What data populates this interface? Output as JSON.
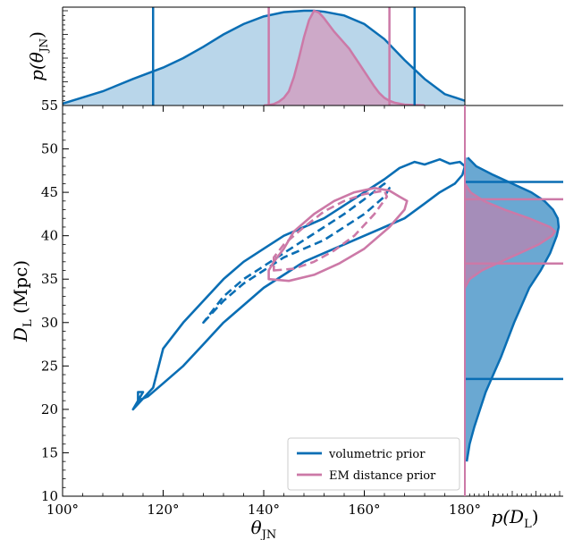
{
  "colors": {
    "volumetric": "#0a6eb4",
    "em": "#cc79a7",
    "volumetric_fill": "#b9d6ea",
    "em_fill": "#cea6c6"
  },
  "chart_data": [
    {
      "type": "area",
      "panel": "top-marginal",
      "ylabel": "p(θJN)",
      "xlim": [
        100,
        180
      ],
      "series": [
        {
          "name": "volumetric prior",
          "x": [
            100,
            108,
            114,
            120,
            124,
            128,
            132,
            136,
            140,
            144,
            148,
            150,
            152,
            156,
            160,
            164,
            168,
            172,
            176,
            180
          ],
          "y": [
            0.02,
            0.15,
            0.28,
            0.4,
            0.5,
            0.62,
            0.75,
            0.86,
            0.94,
            0.985,
            1.0,
            1.0,
            0.99,
            0.95,
            0.86,
            0.7,
            0.48,
            0.28,
            0.12,
            0.05
          ]
        },
        {
          "name": "EM distance prior",
          "x": [
            140,
            141,
            142,
            143,
            144,
            145,
            146,
            147,
            148,
            149,
            150,
            151,
            152,
            153,
            154,
            155,
            156,
            157,
            158,
            159,
            160,
            161,
            162,
            163,
            164,
            165,
            166,
            168,
            170,
            172
          ],
          "y": [
            0,
            0.005,
            0.015,
            0.04,
            0.08,
            0.15,
            0.3,
            0.5,
            0.72,
            0.9,
            1.0,
            0.98,
            0.92,
            0.85,
            0.78,
            0.72,
            0.66,
            0.6,
            0.52,
            0.44,
            0.36,
            0.28,
            0.2,
            0.13,
            0.08,
            0.05,
            0.03,
            0.01,
            0.005,
            0
          ]
        }
      ],
      "intervals": {
        "volumetric prior": [
          118,
          170
        ],
        "EM distance prior": [
          141,
          165
        ]
      }
    },
    {
      "type": "line",
      "panel": "main-contours",
      "xlabel": "θJN",
      "ylabel": "DL (Mpc)",
      "xlim": [
        100,
        180
      ],
      "ylim": [
        10,
        55
      ],
      "xticks": [
        "100°",
        "120°",
        "140°",
        "160°",
        "180°"
      ],
      "yticks": [
        "10",
        "15",
        "20",
        "25",
        "30",
        "35",
        "40",
        "45",
        "50",
        "55"
      ],
      "legend": {
        "position": "bottom-right",
        "entries": [
          "volumetric prior",
          "EM distance prior"
        ]
      },
      "contours": [
        {
          "series": "volumetric prior",
          "level": "outer",
          "style": "solid",
          "x": [
            114,
            118,
            120,
            124,
            128,
            132,
            136,
            140,
            144,
            148,
            152,
            156,
            160,
            164,
            167,
            170,
            172,
            175,
            177,
            179,
            180,
            179.5,
            178,
            175,
            172,
            168,
            164,
            160,
            156,
            152,
            148,
            144,
            140,
            136,
            132,
            128,
            124,
            120,
            117,
            115,
            115,
            116,
            114
          ],
          "y": [
            20,
            22.5,
            27,
            30,
            32.5,
            35,
            37,
            38.5,
            40,
            41,
            42,
            43.5,
            45,
            46.5,
            47.8,
            48.5,
            48.2,
            48.8,
            48.3,
            48.5,
            48,
            47,
            46,
            45,
            43.7,
            42,
            41,
            40,
            39,
            38,
            37,
            35.5,
            34,
            32,
            30,
            27.5,
            25,
            23,
            21.5,
            21,
            22,
            22,
            20
          ]
        },
        {
          "series": "volumetric prior",
          "level": "inner",
          "style": "dashed",
          "x": [
            128,
            132,
            136,
            140,
            144,
            148,
            152,
            156,
            160,
            164,
            165,
            164,
            160,
            156,
            152,
            148,
            144,
            140,
            136,
            132,
            128
          ],
          "y": [
            30,
            32.5,
            34.5,
            36,
            37.5,
            38.5,
            39.5,
            41,
            42.5,
            44.5,
            45.5,
            46,
            44.2,
            42.5,
            41,
            39.5,
            38,
            36.5,
            35,
            33,
            30
          ]
        },
        {
          "series": "EM distance prior",
          "level": "outer",
          "style": "solid",
          "x": [
            141,
            145,
            150,
            155,
            160,
            165,
            168,
            168.5,
            167,
            165,
            162,
            158,
            154,
            150,
            146,
            144,
            142,
            141,
            141
          ],
          "y": [
            35,
            34.8,
            35.5,
            36.8,
            38.5,
            41,
            43,
            44,
            44.5,
            45.2,
            45.5,
            45,
            44,
            42.5,
            40.5,
            38.5,
            37,
            36,
            35
          ]
        },
        {
          "series": "EM distance prior",
          "level": "inner",
          "style": "dashed",
          "x": [
            142,
            146,
            150,
            154,
            158,
            162,
            164.5,
            164,
            160,
            156,
            152,
            148,
            144,
            142,
            142
          ],
          "y": [
            36,
            36.2,
            37,
            38.3,
            40,
            42.5,
            44.5,
            45.2,
            44.8,
            44,
            42.8,
            41,
            39,
            37.5,
            36
          ]
        }
      ]
    },
    {
      "type": "area",
      "panel": "right-marginal",
      "xlabel": "p(DL)",
      "ylim": [
        10,
        55
      ],
      "series": [
        {
          "name": "volumetric prior",
          "y": [
            14,
            16,
            18,
            20,
            22,
            24,
            26,
            28,
            30,
            32,
            34,
            35,
            36,
            38,
            40,
            41,
            42,
            43,
            44,
            45,
            46,
            47,
            48,
            49
          ],
          "x": [
            0.02,
            0.05,
            0.1,
            0.16,
            0.22,
            0.3,
            0.38,
            0.45,
            0.52,
            0.6,
            0.68,
            0.74,
            0.8,
            0.9,
            0.97,
            0.99,
            0.98,
            0.93,
            0.84,
            0.7,
            0.5,
            0.3,
            0.12,
            0.03
          ]
        },
        {
          "name": "EM distance prior",
          "y": [
            34,
            35,
            36,
            37,
            38,
            39,
            40,
            40.5,
            41,
            42,
            43,
            44,
            45,
            46
          ],
          "x": [
            0,
            0.05,
            0.18,
            0.38,
            0.58,
            0.78,
            0.92,
            0.95,
            0.9,
            0.68,
            0.42,
            0.2,
            0.06,
            0
          ]
        }
      ],
      "intervals": {
        "volumetric prior": [
          23.5,
          46.2
        ],
        "EM distance prior": [
          36.8,
          44.2
        ]
      }
    }
  ]
}
